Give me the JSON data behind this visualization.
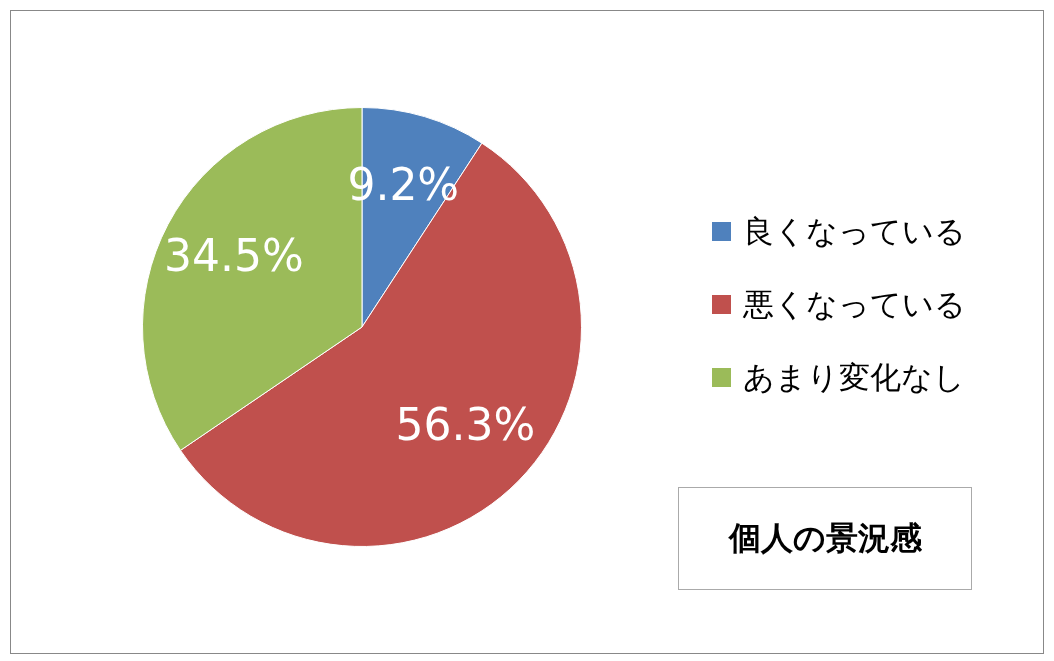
{
  "chart_data": {
    "type": "pie",
    "title": "個人の景況感",
    "categories": [
      "良くなっている",
      "悪くなっている",
      "あまり変化なし"
    ],
    "values": [
      9.2,
      56.3,
      34.5
    ],
    "colors": [
      "#4f81bd",
      "#c0504d",
      "#9bbb59"
    ],
    "value_labels": [
      "9.2%",
      "56.3%",
      "34.5%"
    ],
    "legend": "right"
  }
}
